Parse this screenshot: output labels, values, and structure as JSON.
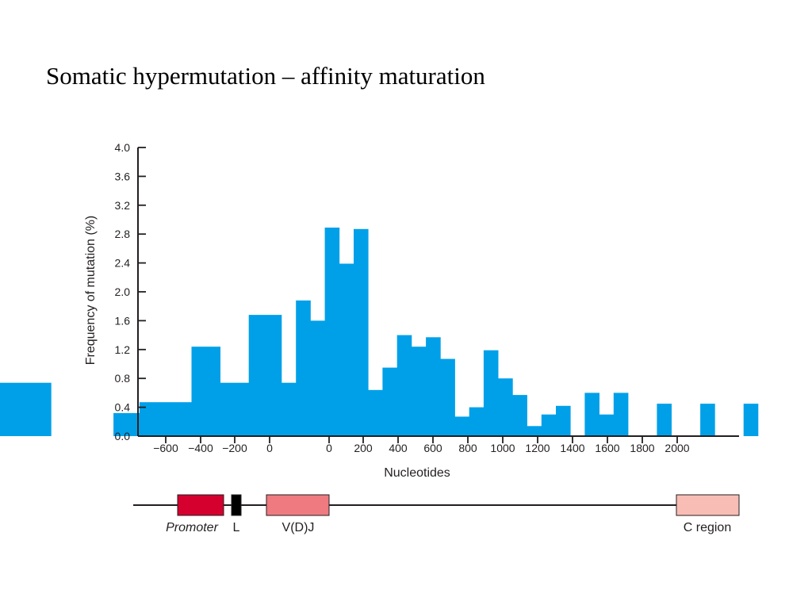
{
  "slide": {
    "title": "Somatic hypermutation – affinity maturation"
  },
  "chart_data": {
    "type": "bar",
    "ylabel": "Frequency of mutation (%)",
    "xlabel": "Nucleotides",
    "ylim": [
      0,
      4.0
    ],
    "y_ticks": [
      "0.0",
      "0.4",
      "0.8",
      "1.2",
      "1.6",
      "2.0",
      "2.4",
      "2.8",
      "3.2",
      "3.6",
      "4.0"
    ],
    "y_tick_values": [
      0,
      0.4,
      0.8,
      1.2,
      1.6,
      2.0,
      2.4,
      2.8,
      3.2,
      3.6,
      4.0
    ],
    "x_ticks": [
      "−600",
      "−400",
      "−200",
      "0",
      "0",
      "200",
      "400",
      "600",
      "800",
      "1000",
      "1200",
      "1400",
      "1600",
      "1800",
      "2000"
    ],
    "grid": false,
    "bar_color": "#00a0e9",
    "bars": [
      {
        "start": -520,
        "end": -420,
        "value": 0.74
      },
      {
        "start": -300,
        "end": -250,
        "value": 0.32
      },
      {
        "start": -250,
        "end": -150,
        "value": 0.47
      },
      {
        "start": -150,
        "end": -95,
        "value": 1.24
      },
      {
        "start": -95,
        "end": -40,
        "value": 0.74
      },
      {
        "start": -40,
        "end": 15,
        "value": 1.68
      },
      {
        "start": 15,
        "end": 70,
        "value": 0.74
      },
      {
        "start": 70,
        "end": 125,
        "value": 1.88
      },
      {
        "start": 125,
        "end": 180,
        "value": 1.6
      },
      {
        "start": 180,
        "end": 235,
        "value": 2.89
      },
      {
        "start": 235,
        "end": 290,
        "value": 2.39
      },
      {
        "start": 290,
        "end": 345,
        "value": 2.87
      },
      {
        "start": 345,
        "end": 400,
        "value": 0.64
      },
      {
        "start": 400,
        "end": 455,
        "value": 0.95
      },
      {
        "start": 455,
        "end": 510,
        "value": 1.4
      },
      {
        "start": 510,
        "end": 565,
        "value": 1.24
      },
      {
        "start": 565,
        "end": 620,
        "value": 1.37
      },
      {
        "start": 620,
        "end": 675,
        "value": 1.07
      },
      {
        "start": 675,
        "end": 730,
        "value": 0.27
      },
      {
        "start": 730,
        "end": 785,
        "value": 0.4
      },
      {
        "start": 785,
        "end": 840,
        "value": 1.19
      },
      {
        "start": 840,
        "end": 895,
        "value": 0.8
      },
      {
        "start": 895,
        "end": 950,
        "value": 0.57
      },
      {
        "start": 950,
        "end": 1005,
        "value": 0.14
      },
      {
        "start": 1005,
        "end": 1060,
        "value": 0.3
      },
      {
        "start": 1060,
        "end": 1115,
        "value": 0.42
      },
      {
        "start": 1170,
        "end": 1225,
        "value": 0.6
      },
      {
        "start": 1225,
        "end": 1280,
        "value": 0.3
      },
      {
        "start": 1280,
        "end": 1335,
        "value": 0.6
      },
      {
        "start": 1445,
        "end": 1500,
        "value": 0.45
      },
      {
        "start": 1610,
        "end": 1665,
        "value": 0.45
      },
      {
        "start": 1775,
        "end": 1830,
        "value": 0.45
      }
    ]
  },
  "gene_map": {
    "regions": [
      {
        "label": "Promoter",
        "italic": true,
        "color": "#d6002f"
      },
      {
        "label": "L",
        "italic": false,
        "color": "#000000"
      },
      {
        "label": "V(D)J",
        "italic": false,
        "color": "#ef7a80"
      },
      {
        "label": "C region",
        "italic": false,
        "color": "#f8bdb5"
      }
    ]
  }
}
